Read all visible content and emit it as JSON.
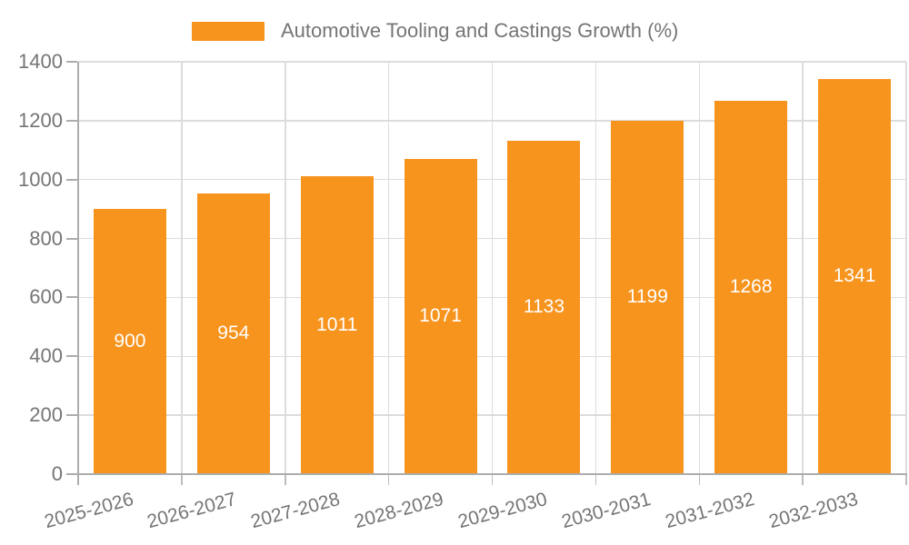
{
  "legend": {
    "label": "Automotive Tooling and Castings Growth (%)"
  },
  "chart_data": {
    "type": "bar",
    "title": "Automotive Tooling and Castings Growth (%)",
    "legend_position": "top",
    "categories": [
      "2025-2026",
      "2026-2027",
      "2027-2028",
      "2028-2029",
      "2029-2030",
      "2030-2031",
      "2031-2032",
      "2032-2033"
    ],
    "values": [
      900,
      954,
      1011,
      1071,
      1133,
      1199,
      1268,
      1341
    ],
    "xlabel": "",
    "ylabel": "",
    "ylim": [
      0,
      1400
    ],
    "yticks": [
      0,
      200,
      400,
      600,
      800,
      1000,
      1200,
      1400
    ],
    "grid": true,
    "x_label_rotation_deg": -15,
    "colors": {
      "bar": "#F7941E",
      "value_text": "#FFFFFF",
      "axis_text": "#757575",
      "grid": "#DCDCDC",
      "axis_line": "#ADADAD",
      "tick_mark": "#BDBDBD"
    }
  }
}
